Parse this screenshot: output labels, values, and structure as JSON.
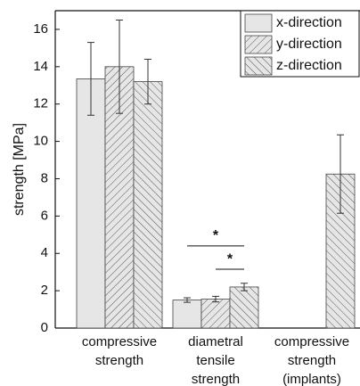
{
  "chart_data": {
    "type": "bar",
    "y_label": "strength [MPa]",
    "categories": [
      [
        "compressive",
        "strength"
      ],
      [
        "diametral",
        "tensile",
        "strength"
      ],
      [
        "compressive",
        "strength",
        "(implants)"
      ]
    ],
    "series": [
      {
        "name": "x-direction",
        "color": "#e6e6e6",
        "values": [
          13.35,
          1.5,
          null
        ],
        "errors": [
          1.95,
          0.12,
          null
        ]
      },
      {
        "name": "y-direction",
        "color": "#e6e6e6",
        "hatch": "/",
        "values": [
          14.0,
          1.55,
          null
        ],
        "errors": [
          2.5,
          0.15,
          null
        ]
      },
      {
        "name": "z-direction",
        "color": "#e6e6e6",
        "hatch": "\\",
        "values": [
          13.2,
          2.2,
          8.25
        ],
        "errors": [
          1.2,
          0.2,
          2.1
        ]
      }
    ],
    "annotations": [
      {
        "text": "*",
        "category": 1,
        "from": 0,
        "to": 2,
        "y": 4.4
      },
      {
        "text": "*",
        "category": 1,
        "from": 1,
        "to": 2,
        "y": 3.15
      }
    ],
    "ylim": [
      0,
      17
    ],
    "yticks": [
      0,
      2,
      4,
      6,
      8,
      10,
      12,
      14,
      16
    ],
    "legend": "upper right"
  }
}
